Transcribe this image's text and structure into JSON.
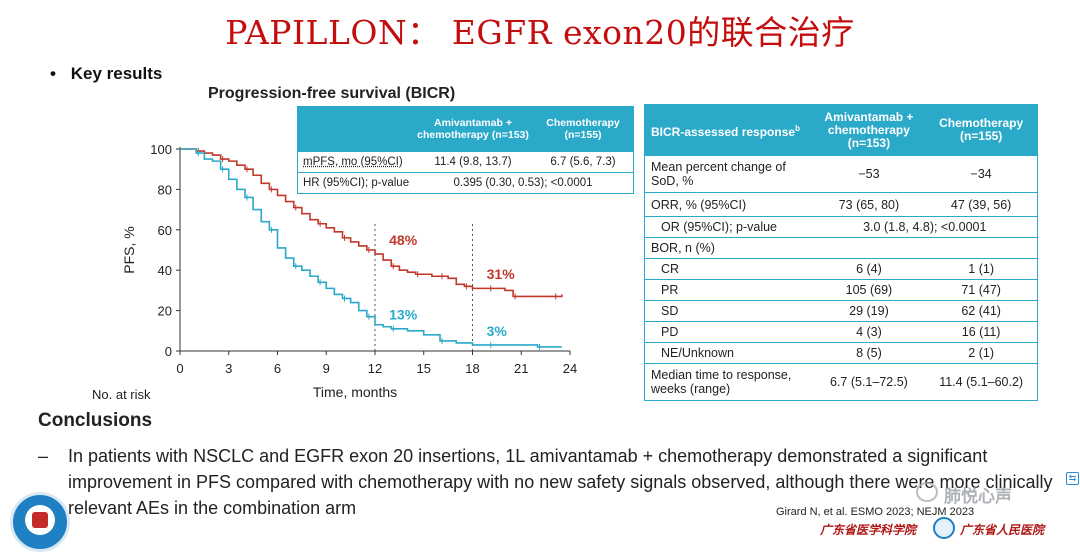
{
  "slide": {
    "title": "PAPILLON： EGFR exon20的联合治疗",
    "bullet": "Key results",
    "chart_title": "Progression-free survival (BICR)"
  },
  "hr_table": {
    "header": {
      "arm1": "Amivantamab + chemotherapy (n=153)",
      "arm2": "Chemotherapy (n=155)"
    },
    "rows": [
      {
        "label": "mPFS, mo (95%CI)",
        "arm1": "11.4 (9.8, 13.7)",
        "arm2": "6.7 (5.6, 7.3)"
      },
      {
        "label": "HR (95%CI); p-value",
        "value": "0.395 (0.30, 0.53); <0.0001"
      }
    ]
  },
  "response_table": {
    "header": {
      "col1": "BICR-assessed response",
      "col1_sup": "b",
      "arm1": "Amivantamab + chemotherapy (n=153)",
      "arm2": "Chemotherapy (n=155)"
    },
    "rows": [
      {
        "label": "Mean percent change of SoD, %",
        "arm1": "−53",
        "arm2": "−34"
      },
      {
        "label": "ORR, % (95%CI)",
        "arm1": "73 (65, 80)",
        "arm2": "47 (39, 56)"
      },
      {
        "label": "OR (95%CI); p-value",
        "value": "3.0 (1.8, 4.8); <0.0001"
      },
      {
        "label": "BOR, n (%)",
        "arm1": "",
        "arm2": ""
      },
      {
        "label": "CR",
        "arm1": "6 (4)",
        "arm2": "1 (1)"
      },
      {
        "label": "PR",
        "arm1": "105 (69)",
        "arm2": "71 (47)"
      },
      {
        "label": "SD",
        "arm1": "29 (19)",
        "arm2": "62 (41)"
      },
      {
        "label": "PD",
        "arm1": "4 (3)",
        "arm2": "16 (11)"
      },
      {
        "label": "NE/Unknown",
        "arm1": "8 (5)",
        "arm2": "2 (1)"
      },
      {
        "label": "Median time to response, weeks (range)",
        "arm1": "6.7 (5.1–72.5)",
        "arm2": "11.4 (5.1–60.2)"
      }
    ]
  },
  "chart_data": {
    "type": "line",
    "title": "Progression-free survival (BICR)",
    "xlabel": "Time, months",
    "ylabel": "PFS, %",
    "xlim": [
      0,
      24
    ],
    "ylim": [
      0,
      100
    ],
    "xticks": [
      0,
      3,
      6,
      9,
      12,
      15,
      18,
      21,
      24
    ],
    "yticks": [
      0,
      20,
      40,
      60,
      80,
      100
    ],
    "reference_lines_x": [
      12,
      18
    ],
    "colors": {
      "amivantamab_chemo": "#c0392b",
      "chemo": "#2aa9c9"
    },
    "series": [
      {
        "x": [
          0,
          1,
          1.5,
          2,
          2.5,
          3,
          3.5,
          4,
          4.5,
          5,
          5.5,
          6,
          6.5,
          7,
          7.5,
          8,
          8.5,
          9,
          9.5,
          10,
          10.5,
          11,
          11.5,
          12,
          12.5,
          13,
          13.5,
          14,
          14.5,
          15,
          15.5,
          16,
          16.5,
          17,
          17.5,
          18,
          18.5,
          19,
          19.5,
          20,
          20.5,
          21,
          22,
          23,
          23.5
        ],
        "y": [
          100,
          99,
          98,
          97,
          95,
          94,
          92,
          90,
          87,
          83,
          80,
          77,
          74,
          71,
          68,
          65,
          63,
          61,
          59,
          56,
          54,
          52,
          50,
          48,
          45,
          42,
          40,
          39,
          38,
          38,
          37,
          37,
          36,
          33,
          32,
          31,
          31,
          31,
          31,
          30,
          27,
          27,
          27,
          27,
          28
        ]
      },
      {
        "x": [
          0,
          1,
          1.5,
          2,
          2.5,
          3,
          3.5,
          4,
          4.5,
          5,
          5.5,
          6,
          6.5,
          7,
          7.5,
          8,
          8.5,
          9,
          9.5,
          10,
          10.5,
          11,
          11.5,
          12,
          12.5,
          13,
          14,
          15,
          16,
          17,
          18,
          19,
          20,
          21,
          22,
          23,
          23.5
        ],
        "y": [
          100,
          98,
          95,
          94,
          90,
          85,
          80,
          76,
          70,
          64,
          60,
          51,
          46,
          42,
          40,
          37,
          34,
          31,
          28,
          26,
          24,
          20,
          17,
          13,
          12,
          11,
          10,
          8,
          5,
          4,
          3,
          3,
          3,
          3,
          2,
          2,
          2
        ]
      }
    ],
    "annotations": [
      {
        "text": "48%",
        "x": 12.5,
        "y": 55,
        "series": 0
      },
      {
        "text": "31%",
        "x": 18.5,
        "y": 38,
        "series": 0
      },
      {
        "text": "13%",
        "x": 12.5,
        "y": 18,
        "series": 1
      },
      {
        "text": "3%",
        "x": 18.5,
        "y": 10,
        "series": 1
      }
    ]
  },
  "at_risk_label": "No. at risk",
  "conclusions": {
    "heading": "Conclusions",
    "dash": "–",
    "text": "In patients with NSCLC and EGFR exon 20 insertions, 1L amivantamab + chemotherapy demonstrated a significant improvement in PFS compared with chemotherapy with no new safety signals observed, although there were more clinically relevant AEs in the combination arm"
  },
  "footer": {
    "citation": "Girard N, et al. ESMO 2023; NEJM 2023",
    "institution_left": "广东省医学科学院",
    "institution_right": "广东省人民医院",
    "watermark": "肺悦心声"
  }
}
